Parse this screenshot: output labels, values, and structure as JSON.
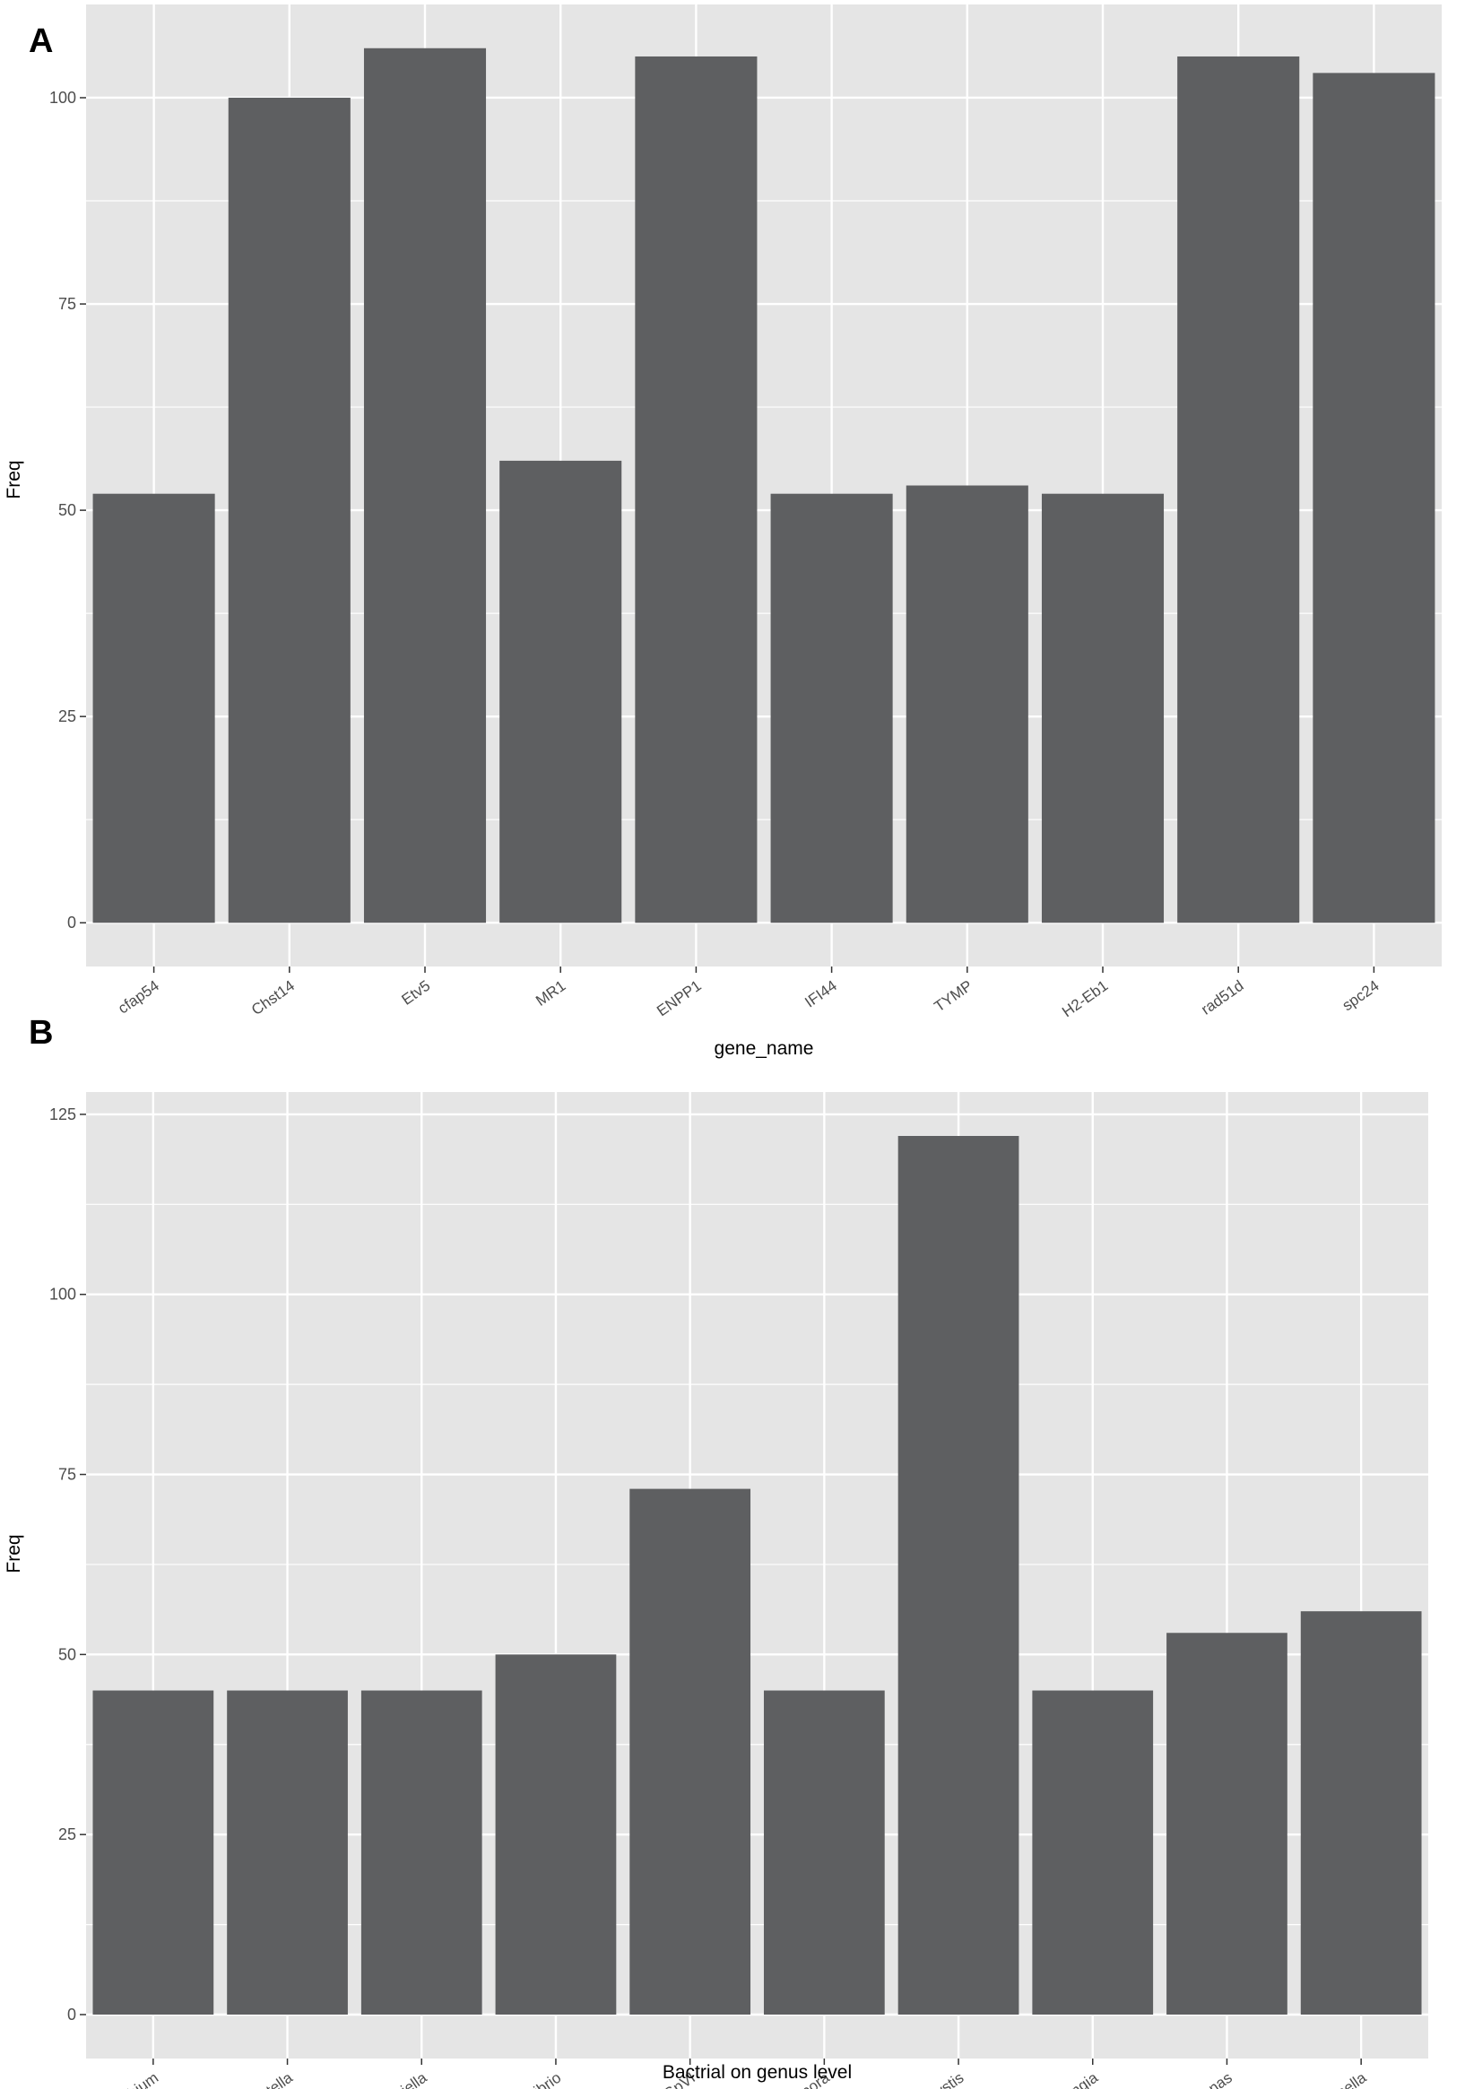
{
  "chart_data": [
    {
      "type": "bar",
      "panel": "A",
      "categories": [
        "cfap54",
        "Chst14",
        "Etv5",
        "MR1",
        "ENPP1",
        "IFI44",
        "TYMP",
        "H2-Eb1",
        "rad51d",
        "spc24"
      ],
      "values": [
        52,
        100,
        106,
        56,
        105,
        52,
        53,
        52,
        105,
        103
      ],
      "xlabel": "gene_name",
      "ylabel": "Freq",
      "ylim": [
        -5.3,
        111.3
      ],
      "yticks": [
        0,
        25,
        50,
        75,
        100
      ],
      "grid": true,
      "legend": "none",
      "colors": {
        "panel_background": "#e5e5e5",
        "grid": "#ffffff",
        "bar": "#5e5f61"
      }
    },
    {
      "type": "bar",
      "panel": "B",
      "categories": [
        "Azorhizobium",
        "Bordetella",
        "Candidatus_Berkiella",
        "Desulfovibrio",
        "GpVI",
        "Lutispora",
        "Methylocystis",
        "Ohtaekwangia",
        "Roseomonas",
        "Shewanella"
      ],
      "values": [
        45,
        45,
        45,
        50,
        73,
        45,
        122,
        45,
        53,
        56
      ],
      "xlabel": "Bactrial on genus level",
      "ylabel": "Freq",
      "ylim": [
        -6.1,
        128.1
      ],
      "yticks": [
        0,
        25,
        50,
        75,
        100,
        125
      ],
      "grid": true,
      "legend": "none",
      "colors": {
        "panel_background": "#e5e5e5",
        "grid": "#ffffff",
        "bar": "#5e5f61"
      }
    }
  ]
}
